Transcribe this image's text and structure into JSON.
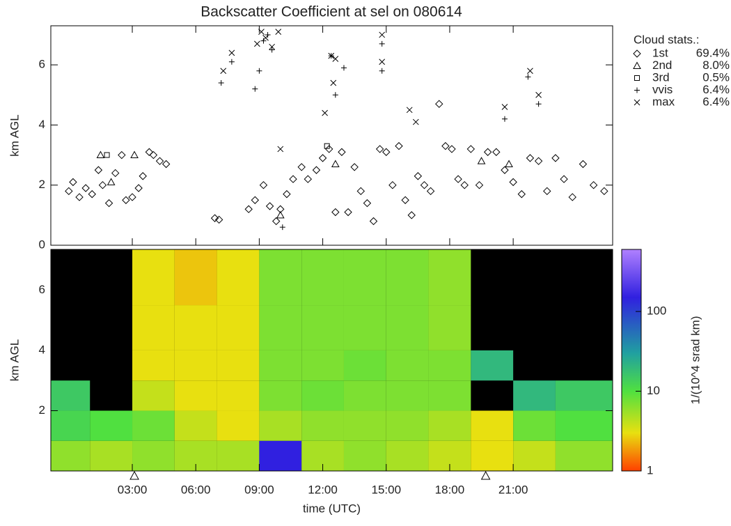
{
  "chart_data": [
    {
      "type": "scatter",
      "title": "Backscatter Coefficient at sel on 080614",
      "ylabel": "km AGL",
      "xlim": [
        -0.85,
        25.7
      ],
      "ylim": [
        0,
        7.3
      ],
      "yticks": [
        0,
        2,
        4,
        6
      ],
      "legend": {
        "title": "Cloud stats.:",
        "position": "right"
      },
      "series": [
        {
          "name": "1st",
          "marker": "diamond",
          "color": "#000000",
          "share": {
            "value": 69.4,
            "label": "69.4%"
          },
          "x": [
            0,
            0.2,
            0.5,
            0.8,
            1.1,
            1.4,
            1.6,
            1.9,
            2.2,
            2.5,
            2.7,
            3.0,
            3.3,
            3.5,
            3.8,
            4.0,
            4.3,
            4.6,
            6.9,
            7.1,
            8.5,
            8.8,
            9.2,
            9.5,
            9.8,
            10.0,
            10.3,
            10.6,
            11.0,
            11.3,
            11.7,
            12.0,
            12.3,
            12.6,
            12.9,
            13.2,
            13.5,
            13.8,
            14.1,
            14.4,
            14.7,
            15.0,
            15.3,
            15.6,
            15.9,
            16.2,
            16.5,
            16.8,
            17.1,
            17.5,
            17.8,
            18.1,
            18.4,
            18.7,
            19.0,
            19.4,
            19.8,
            20.2,
            20.6,
            21.0,
            21.4,
            21.8,
            22.2,
            22.6,
            23.0,
            23.4,
            23.8,
            24.3,
            24.8,
            25.3
          ],
          "y": [
            1.8,
            2.1,
            1.6,
            1.9,
            1.7,
            2.5,
            2.0,
            1.4,
            2.4,
            3.0,
            1.5,
            1.6,
            1.9,
            2.3,
            3.1,
            3.0,
            2.8,
            2.7,
            0.9,
            0.85,
            1.2,
            1.5,
            2.0,
            1.3,
            0.8,
            1.2,
            1.7,
            2.2,
            2.6,
            2.2,
            2.5,
            2.9,
            3.2,
            1.1,
            3.1,
            1.1,
            2.6,
            1.8,
            1.4,
            0.8,
            3.2,
            3.1,
            2.0,
            3.3,
            1.5,
            1.0,
            2.3,
            2.0,
            1.8,
            4.7,
            3.3,
            3.2,
            2.2,
            2.0,
            3.2,
            2.0,
            3.1,
            3.1,
            2.5,
            2.1,
            1.7,
            2.9,
            2.8,
            1.8,
            2.9,
            2.2,
            1.6,
            2.7,
            2.0,
            1.8
          ]
        },
        {
          "name": "2nd",
          "marker": "triangle",
          "color": "#000000",
          "share": {
            "value": 8.0,
            "label": "8.0%"
          },
          "x": [
            1.5,
            2.0,
            3.1,
            10.0,
            12.6,
            19.5,
            20.8
          ],
          "y": [
            3.0,
            2.1,
            3.0,
            1.0,
            2.7,
            2.8,
            2.7
          ]
        },
        {
          "name": "3rd",
          "marker": "square",
          "color": "#000000",
          "share": {
            "value": 0.5,
            "label": "0.5%"
          },
          "x": [
            1.8,
            12.2
          ],
          "y": [
            3.0,
            3.3
          ]
        },
        {
          "name": "vvis",
          "marker": "plus",
          "color": "#000000",
          "share": {
            "value": 6.4,
            "label": "6.4%"
          },
          "x": [
            7.2,
            7.7,
            8.8,
            9.0,
            9.2,
            9.4,
            9.6,
            12.4,
            12.6,
            13.0,
            14.8,
            14.8,
            20.6,
            21.7,
            22.2,
            10.1
          ],
          "y": [
            5.4,
            6.1,
            5.2,
            5.8,
            6.8,
            7.0,
            6.5,
            6.3,
            5.0,
            5.9,
            6.7,
            5.8,
            4.2,
            5.6,
            4.7,
            0.6
          ]
        },
        {
          "name": "max",
          "marker": "cross",
          "color": "#000000",
          "share": {
            "value": 6.4,
            "label": "6.4%"
          },
          "x": [
            7.3,
            7.7,
            8.9,
            9.1,
            9.3,
            9.6,
            9.9,
            10.0,
            12.1,
            12.4,
            12.5,
            12.6,
            14.8,
            14.8,
            16.1,
            16.4,
            20.6,
            21.8,
            22.2
          ],
          "y": [
            5.8,
            6.4,
            6.7,
            7.1,
            6.9,
            6.6,
            7.1,
            3.2,
            4.4,
            6.3,
            5.4,
            6.2,
            7.0,
            6.1,
            4.5,
            4.1,
            4.6,
            5.8,
            5.0
          ]
        }
      ]
    },
    {
      "type": "heatmap",
      "ylabel": "km AGL",
      "xlabel": "time (UTC)",
      "xlim": [
        -0.85,
        25.7
      ],
      "ylim": [
        0,
        7.35
      ],
      "xticks": [
        {
          "value": 3,
          "label": "03:00"
        },
        {
          "value": 6,
          "label": "06:00"
        },
        {
          "value": 9,
          "label": "09:00"
        },
        {
          "value": 12,
          "label": "12:00"
        },
        {
          "value": 15,
          "label": "15:00"
        },
        {
          "value": 18,
          "label": "18:00"
        },
        {
          "value": 21,
          "label": "21:00"
        }
      ],
      "yticks": [
        2,
        4,
        6
      ],
      "background": "#000000",
      "x_edges": [
        -0.85,
        1,
        3,
        5,
        7,
        9,
        11,
        13,
        15,
        17,
        19,
        21,
        23,
        25.7
      ],
      "y_edges": [
        0,
        1,
        2,
        3,
        4,
        5.5,
        7.35
      ],
      "values": [
        [
          6,
          5,
          6,
          5,
          5,
          150,
          5,
          6,
          5,
          4,
          3,
          4,
          6
        ],
        [
          12,
          10,
          8,
          4,
          3,
          5,
          6,
          6,
          6,
          5,
          3,
          8,
          10
        ],
        [
          15,
          null,
          4,
          3,
          3,
          7,
          8,
          7,
          7,
          7,
          null,
          20,
          15
        ],
        [
          null,
          null,
          3,
          3,
          3,
          7,
          7,
          8,
          7,
          7,
          20,
          null,
          null
        ],
        [
          null,
          null,
          3,
          3,
          3,
          7,
          7,
          7,
          7,
          6,
          null,
          null,
          null
        ],
        [
          null,
          null,
          3,
          2.5,
          3,
          7,
          7,
          7,
          7,
          6,
          null,
          null,
          null
        ]
      ],
      "event_markers": [
        3.1,
        19.7
      ],
      "colorbar": {
        "label": "1/(10^4 srad km)",
        "log": true,
        "lim": [
          1,
          600
        ],
        "ticks": [
          1,
          10,
          100
        ],
        "colormap": [
          {
            "value": 1,
            "color": "#ff4000"
          },
          {
            "value": 3,
            "color": "#e8e010"
          },
          {
            "value": 10,
            "color": "#50e040"
          },
          {
            "value": 30,
            "color": "#20a0a0"
          },
          {
            "value": 150,
            "color": "#3020e0"
          },
          {
            "value": 600,
            "color": "#b080ff"
          }
        ]
      }
    }
  ]
}
